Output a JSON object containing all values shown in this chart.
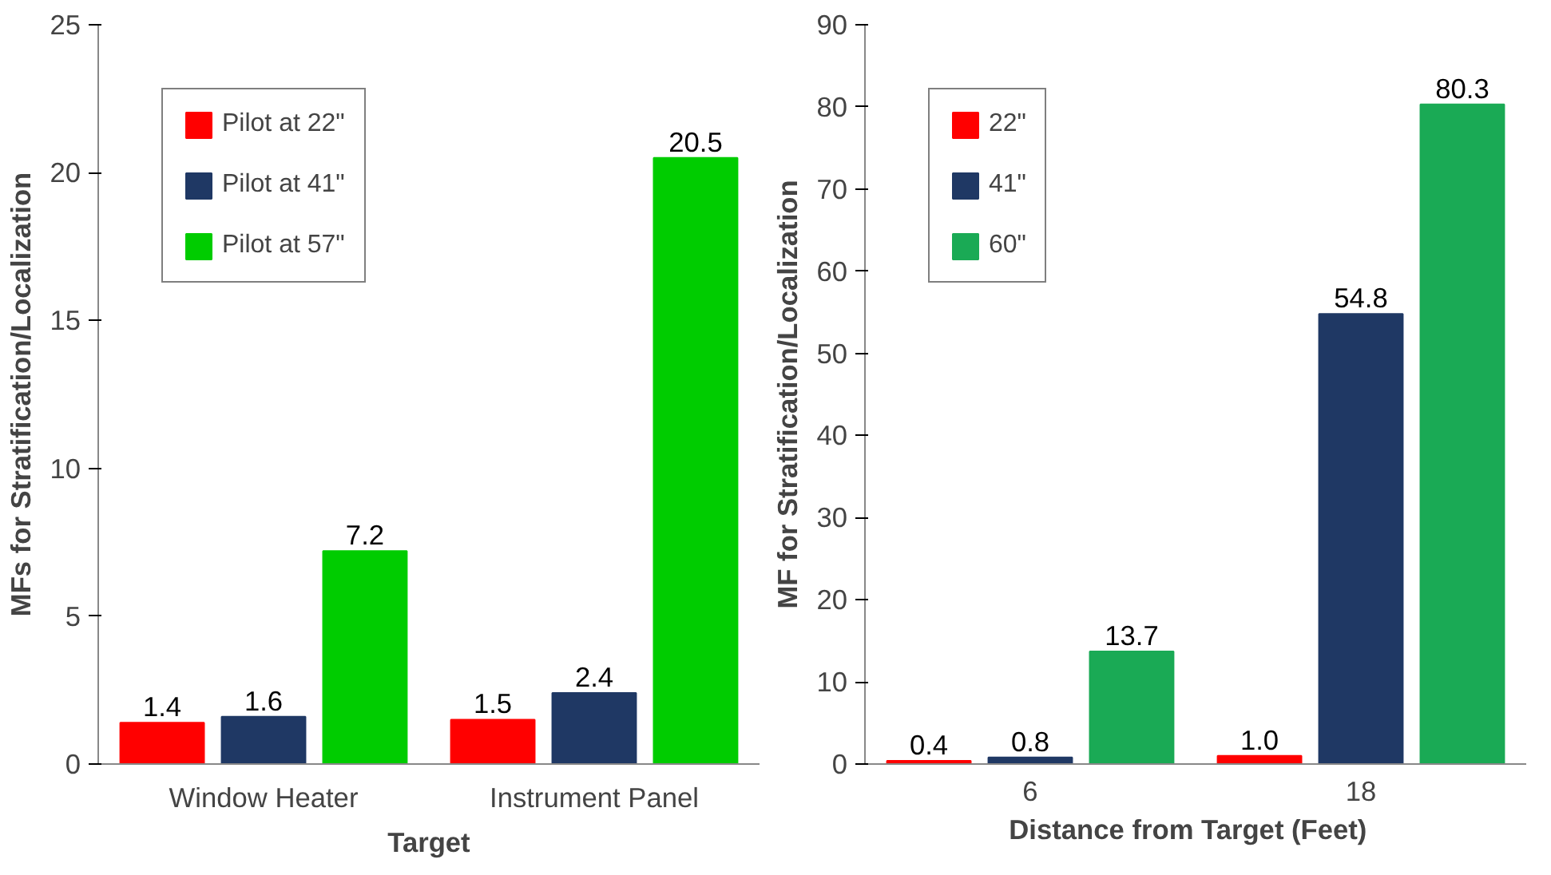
{
  "chart_data": [
    {
      "type": "bar",
      "xlabel": "Target",
      "ylabel": "MFs for Stratification/Localization",
      "categories": [
        "Window Heater",
        "Instrument Panel"
      ],
      "series": [
        {
          "name": "Pilot at 22\"",
          "color": "#ff0000",
          "values": [
            1.4,
            1.5
          ],
          "value_labels": [
            "1.4",
            "1.5"
          ]
        },
        {
          "name": "Pilot at 41\"",
          "color": "#1f3864",
          "values": [
            1.6,
            2.4
          ],
          "value_labels": [
            "1.6",
            "2.4"
          ]
        },
        {
          "name": "Pilot at 57\"",
          "color": "#00cc00",
          "values": [
            7.2,
            20.5
          ],
          "value_labels": [
            "7.2",
            "20.5"
          ]
        }
      ],
      "ylim": [
        0,
        25
      ],
      "yticks": [
        0,
        5,
        10,
        15,
        20,
        25
      ],
      "grid": false,
      "legend": "top left"
    },
    {
      "type": "bar",
      "xlabel": "Distance from  Target  (Feet)",
      "ylabel": "MF for Stratification/Localization",
      "categories": [
        "6",
        "18"
      ],
      "series": [
        {
          "name": "22\"",
          "color": "#ff0000",
          "values": [
            0.4,
            1.0
          ],
          "value_labels": [
            "0.4",
            "1.0"
          ]
        },
        {
          "name": "41\"",
          "color": "#1f3864",
          "values": [
            0.8,
            54.8
          ],
          "value_labels": [
            "0.8",
            "54.8"
          ]
        },
        {
          "name": "60\"",
          "color": "#1aaa55",
          "values": [
            13.7,
            80.3
          ],
          "value_labels": [
            "13.7",
            "80.3"
          ]
        }
      ],
      "ylim": [
        0,
        90
      ],
      "yticks": [
        0,
        10,
        20,
        30,
        40,
        50,
        60,
        70,
        80,
        90
      ],
      "grid": false,
      "legend": "top left"
    }
  ]
}
